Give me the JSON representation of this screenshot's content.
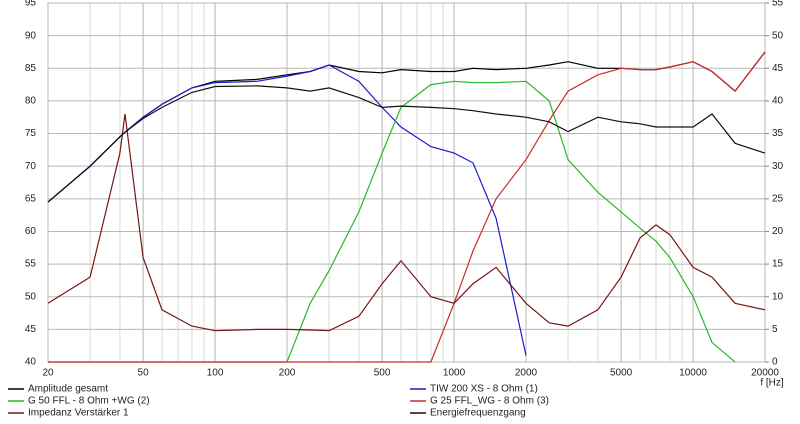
{
  "chart_data": {
    "type": "line",
    "xlabel": "f [Hz]",
    "xscale": "log",
    "grid": true,
    "x": [
      20,
      30,
      40,
      42,
      50,
      60,
      80,
      100,
      150,
      200,
      250,
      300,
      400,
      500,
      600,
      800,
      1000,
      1200,
      1500,
      2000,
      2500,
      3000,
      4000,
      5000,
      6000,
      7000,
      8000,
      10000,
      12000,
      15000,
      20000
    ],
    "xlim": [
      20,
      20000
    ],
    "xticks": [
      20,
      50,
      100,
      200,
      500,
      1000,
      2000,
      5000,
      10000,
      20000
    ],
    "ylim": [
      40,
      95
    ],
    "yticks": [
      40,
      45,
      50,
      55,
      60,
      65,
      70,
      75,
      80,
      85,
      90,
      95
    ],
    "y2lim": [
      0,
      55
    ],
    "y2ticks": [
      0,
      5,
      10,
      15,
      20,
      25,
      30,
      35,
      40,
      45,
      50,
      55
    ],
    "series": [
      {
        "name": "Amplitude gesamt",
        "color": "#000000",
        "values": [
          64.5,
          70,
          74.5,
          75.2,
          77.5,
          79.5,
          82,
          83,
          83.3,
          84,
          84.5,
          85.5,
          84.5,
          84.3,
          84.8,
          84.5,
          84.5,
          85,
          84.8,
          85,
          85.5,
          86,
          85,
          85,
          84.8,
          84.8,
          85.2,
          86,
          84.5,
          81.5,
          87.5
        ]
      },
      {
        "name": "TIW 200 XS - 8 Ohm (1)",
        "color": "#1c1ccc",
        "values": [
          64.5,
          70,
          74.5,
          75.2,
          77.5,
          79.5,
          82,
          82.8,
          83,
          83.8,
          84.5,
          85.5,
          83,
          79,
          76,
          73,
          72,
          70.5,
          62,
          41,
          null,
          null,
          null,
          null,
          null,
          null,
          null,
          null,
          null,
          null,
          null
        ]
      },
      {
        "name": "G 50 FFL - 8 Ohm +WG (2)",
        "color": "#2ab82a",
        "values": [
          40,
          40,
          40,
          40,
          40,
          40,
          40,
          40,
          40,
          40,
          49,
          54,
          63,
          72,
          79,
          82.5,
          83,
          82.8,
          82.8,
          83,
          80,
          71,
          66,
          63,
          60.5,
          58.5,
          56,
          50,
          43,
          40,
          null
        ]
      },
      {
        "name": "G 25 FFL_WG - 8 Ohm (3)",
        "color": "#cc2a2a",
        "values": [
          40,
          40,
          40,
          40,
          40,
          40,
          40,
          40,
          40,
          40,
          40,
          40,
          40,
          40,
          40,
          40,
          49,
          57,
          65,
          71,
          77,
          81.5,
          84,
          85,
          84.8,
          84.8,
          85.2,
          86,
          84.5,
          81.5,
          87.5
        ]
      },
      {
        "name": "Impedanz Verstärker 1",
        "color": "#7a1414",
        "axis": "y2",
        "values": [
          9,
          13,
          32,
          38,
          16,
          8,
          5.5,
          4.8,
          5,
          5,
          4.9,
          4.8,
          7,
          12,
          15.5,
          10,
          9,
          12,
          14.5,
          9,
          6,
          5.5,
          8,
          13,
          19,
          21,
          19.5,
          14.5,
          13,
          9,
          8
        ]
      },
      {
        "name": "Energiefrequenzgang",
        "color": "#111111",
        "values": [
          64.5,
          70,
          74.5,
          75.2,
          77.3,
          79,
          81.3,
          82.2,
          82.3,
          82,
          81.5,
          82,
          80.5,
          79,
          79.2,
          79,
          78.8,
          78.5,
          78,
          77.5,
          76.8,
          75.3,
          77.5,
          76.8,
          76.5,
          76,
          76,
          76,
          78,
          73.5,
          72
        ]
      }
    ]
  }
}
